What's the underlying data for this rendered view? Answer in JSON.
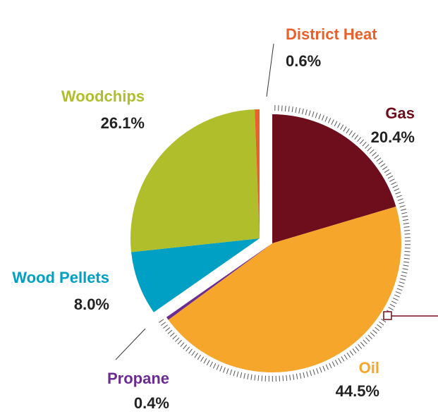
{
  "chart_data": {
    "type": "pie",
    "categories": [
      "Gas",
      "Oil",
      "Propane",
      "Wood Pellets",
      "Woodchips",
      "District Heat"
    ],
    "values": [
      20.4,
      44.5,
      0.4,
      8.0,
      26.1,
      0.6
    ],
    "value_labels": [
      "20.4%",
      "44.5%",
      "0.4%",
      "8.0%",
      "26.1%",
      "0.6%"
    ],
    "colors": [
      "#6e0e1c",
      "#f6a72b",
      "#6b2c91",
      "#009fc4",
      "#afbe2a",
      "#e8602a"
    ]
  }
}
